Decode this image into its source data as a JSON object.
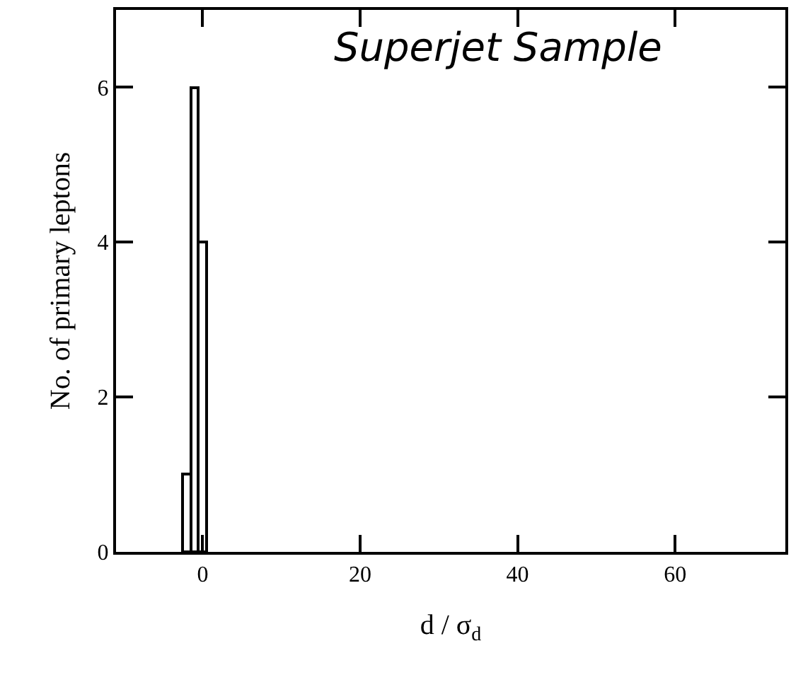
{
  "chart_data": {
    "type": "histogram",
    "xlabel": "d / σ$_{d}$",
    "ylabel": "No. of primary leptons",
    "annotations": [
      "Superjet Sample"
    ],
    "bins": [
      -2.5,
      -1.5,
      -0.5,
      0.5
    ],
    "values": [
      1,
      6,
      4
    ],
    "color": "#000000",
    "xlim": [
      -11,
      74
    ],
    "xticks": [
      0,
      20,
      40,
      60
    ],
    "ylim": [
      0,
      7
    ],
    "yticks": [
      0,
      2,
      4,
      6
    ],
    "grid": false,
    "legend": false
  }
}
